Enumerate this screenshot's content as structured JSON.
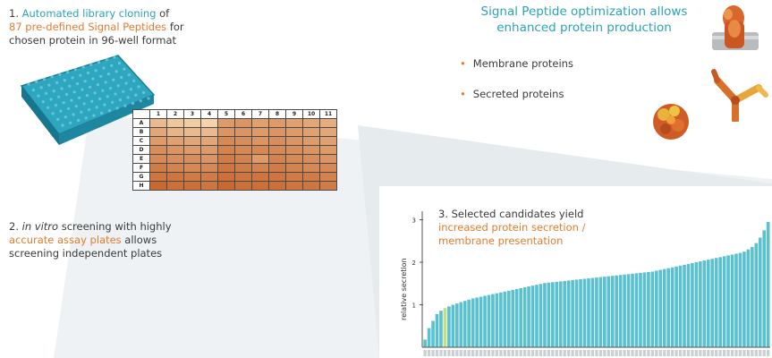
{
  "step1": {
    "prefix": "1. ",
    "highlight1": "Automated library cloning",
    "mid1": " of",
    "highlight2": "87 pre-defined Signal Peptides",
    "mid2": " for",
    "line3": "chosen protein in 96-well format"
  },
  "step2": {
    "prefix": "2. ",
    "italic": "in vitro",
    "mid": " screening with highly",
    "highlight": "accurate assay plates",
    "mid2": " allows",
    "line3": "screening independent plates"
  },
  "step3": {
    "line1": "3. Selected candidates yield",
    "highlight1": "increased protein secretion /",
    "highlight2": "membrane presentation"
  },
  "headline": {
    "line1": "Signal Peptide optimization allows",
    "line2": "enhanced protein production"
  },
  "bullets": [
    "Membrane proteins",
    "Secreted proteins"
  ],
  "bullet_symbol": "•",
  "plate": {
    "columns": [
      "1",
      "2",
      "3",
      "4",
      "5",
      "6",
      "7",
      "8",
      "9",
      "10",
      "11"
    ],
    "rows": [
      "A",
      "B",
      "C",
      "D",
      "E",
      "F",
      "G",
      "H"
    ],
    "intensity": [
      [
        0.3,
        0.2,
        0.15,
        0.1,
        0.55,
        0.6,
        0.5,
        0.55,
        0.5,
        0.45,
        0.4
      ],
      [
        0.45,
        0.35,
        0.3,
        0.3,
        0.6,
        0.6,
        0.55,
        0.6,
        0.55,
        0.5,
        0.45
      ],
      [
        0.55,
        0.5,
        0.45,
        0.45,
        0.7,
        0.65,
        0.6,
        0.65,
        0.6,
        0.55,
        0.5
      ],
      [
        0.65,
        0.6,
        0.55,
        0.55,
        0.75,
        0.7,
        0.7,
        0.7,
        0.65,
        0.6,
        0.55
      ],
      [
        0.7,
        0.65,
        0.65,
        0.6,
        0.8,
        0.75,
        0.55,
        0.75,
        0.7,
        0.65,
        0.6
      ],
      [
        0.8,
        0.75,
        0.7,
        0.7,
        0.85,
        0.8,
        0.75,
        0.8,
        0.75,
        0.7,
        0.7
      ],
      [
        0.85,
        0.85,
        0.8,
        0.8,
        0.9,
        0.85,
        0.85,
        0.85,
        0.8,
        0.8,
        0.75
      ],
      [
        0.95,
        0.9,
        0.9,
        0.85,
        0.95,
        0.9,
        0.9,
        0.9,
        0.85,
        0.85,
        0.8
      ]
    ],
    "colors": {
      "light": "#f7e0b8",
      "dark": "#c8622a"
    }
  },
  "chart_data": {
    "type": "bar",
    "ylabel": "relative secretion",
    "yticks": [
      "3",
      "2",
      "1"
    ],
    "ylim": [
      0,
      3.2
    ],
    "count": 87,
    "highlight_index": 5,
    "bar_color": "#5cc1cf",
    "highlight_color": "#c6dd82",
    "values": [
      0.18,
      0.45,
      0.62,
      0.78,
      0.86,
      0.92,
      0.96,
      1.0,
      1.03,
      1.06,
      1.09,
      1.12,
      1.15,
      1.17,
      1.19,
      1.21,
      1.23,
      1.25,
      1.27,
      1.29,
      1.31,
      1.33,
      1.35,
      1.37,
      1.39,
      1.41,
      1.43,
      1.45,
      1.47,
      1.49,
      1.51,
      1.52,
      1.53,
      1.54,
      1.55,
      1.56,
      1.57,
      1.58,
      1.59,
      1.6,
      1.61,
      1.62,
      1.63,
      1.64,
      1.65,
      1.66,
      1.67,
      1.68,
      1.69,
      1.7,
      1.71,
      1.72,
      1.73,
      1.74,
      1.75,
      1.76,
      1.77,
      1.78,
      1.8,
      1.82,
      1.84,
      1.86,
      1.88,
      1.9,
      1.92,
      1.94,
      1.96,
      1.98,
      2.0,
      2.02,
      2.04,
      2.06,
      2.08,
      2.1,
      2.12,
      2.14,
      2.16,
      2.18,
      2.2,
      2.22,
      2.25,
      2.3,
      2.36,
      2.45,
      2.58,
      2.75,
      2.95
    ]
  },
  "colors": {
    "teal": "#2aa3b8",
    "orange": "#e37b2f",
    "beam": "#e9eef0"
  },
  "icons": [
    "microplate-icon",
    "membrane-protein-icon",
    "secreted-protein-icon",
    "antibody-icon"
  ]
}
